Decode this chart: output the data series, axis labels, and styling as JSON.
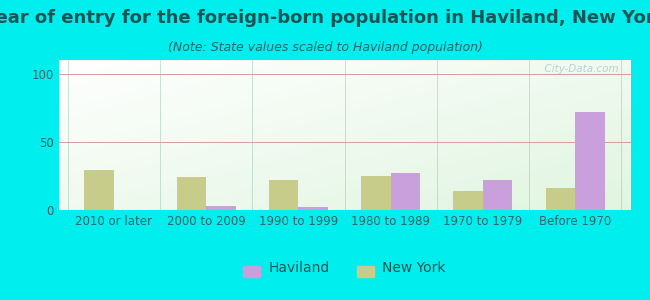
{
  "title": "Year of entry for the foreign-born population in Haviland, New York",
  "subtitle": "(Note: State values scaled to Haviland population)",
  "categories": [
    "2010 or later",
    "2000 to 2009",
    "1990 to 1999",
    "1980 to 1989",
    "1970 to 1979",
    "Before 1970"
  ],
  "haviland_values": [
    0,
    3,
    2,
    27,
    22,
    72
  ],
  "newyork_values": [
    29,
    24,
    22,
    25,
    14,
    16
  ],
  "haviland_color": "#c9a0dc",
  "newyork_color": "#c8cc8a",
  "background_outer": "#00eeee",
  "ylim": [
    0,
    110
  ],
  "yticks": [
    0,
    50,
    100
  ],
  "title_fontsize": 13,
  "subtitle_fontsize": 9,
  "tick_fontsize": 8.5,
  "legend_fontsize": 10,
  "watermark": "  City-Data.com"
}
